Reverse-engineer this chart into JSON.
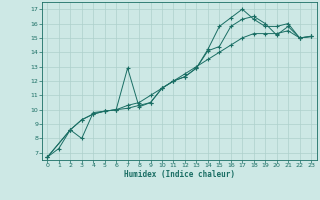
{
  "xlabel": "Humidex (Indice chaleur)",
  "background_color": "#cde8e5",
  "grid_color": "#aed0cc",
  "line_color": "#1a6e64",
  "xlim": [
    -0.5,
    23.5
  ],
  "ylim": [
    6.5,
    17.5
  ],
  "xticks": [
    0,
    1,
    2,
    3,
    4,
    5,
    6,
    7,
    8,
    9,
    10,
    11,
    12,
    13,
    14,
    15,
    16,
    17,
    18,
    19,
    20,
    21,
    22,
    23
  ],
  "yticks": [
    7,
    8,
    9,
    10,
    11,
    12,
    13,
    14,
    15,
    16,
    17
  ],
  "line1_x": [
    0,
    1,
    2,
    3,
    4,
    5,
    6,
    7,
    8,
    9,
    10,
    11,
    12,
    13,
    14,
    15,
    16,
    17,
    18,
    19,
    20,
    21,
    22,
    23
  ],
  "line1_y": [
    6.7,
    7.3,
    8.6,
    9.3,
    9.7,
    9.9,
    10.0,
    10.3,
    10.5,
    11.0,
    11.5,
    12.0,
    12.5,
    13.0,
    13.5,
    14.0,
    14.5,
    15.0,
    15.3,
    15.3,
    15.3,
    15.5,
    15.0,
    15.1
  ],
  "line2_x": [
    0,
    2,
    3,
    4,
    5,
    6,
    7,
    8,
    9,
    10,
    11,
    12,
    13,
    14,
    15,
    16,
    17,
    18,
    19,
    20,
    21,
    22,
    23
  ],
  "line2_y": [
    6.7,
    8.6,
    8.0,
    9.8,
    9.9,
    10.0,
    10.1,
    10.3,
    10.5,
    11.5,
    12.0,
    12.3,
    12.9,
    14.2,
    15.8,
    16.4,
    17.0,
    16.3,
    15.8,
    15.8,
    16.0,
    15.0,
    15.1
  ],
  "line3_x": [
    0,
    2,
    3,
    4,
    5,
    6,
    7,
    8,
    9,
    10,
    11,
    12,
    13,
    14,
    15,
    16,
    17,
    18,
    19,
    20,
    21,
    22,
    23
  ],
  "line3_y": [
    6.7,
    8.6,
    9.3,
    9.7,
    9.9,
    10.0,
    12.9,
    10.2,
    10.5,
    11.5,
    12.0,
    12.3,
    12.9,
    14.1,
    14.4,
    15.8,
    16.3,
    16.5,
    16.0,
    15.2,
    15.8,
    15.0,
    15.1
  ]
}
